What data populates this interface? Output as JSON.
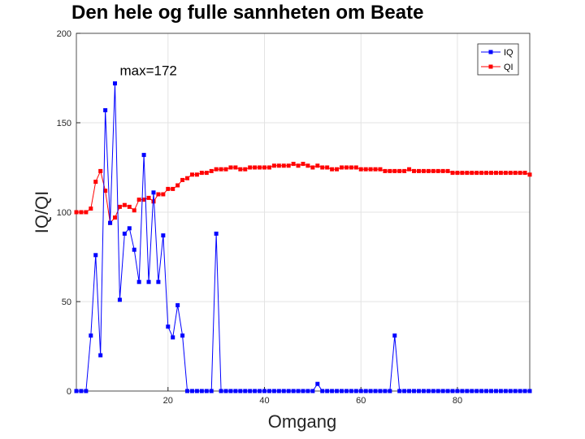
{
  "chart_data": {
    "type": "line",
    "title": "Den hele og fulle sannheten om Beate",
    "xlabel": "Omgang",
    "ylabel": "IQ/QI",
    "xlim": [
      1,
      95
    ],
    "ylim": [
      0,
      200
    ],
    "xticks": [
      20,
      40,
      60,
      80
    ],
    "yticks": [
      0,
      50,
      100,
      150,
      200
    ],
    "grid": true,
    "legend_position": "top-right",
    "annotations": [
      {
        "text": "max=172",
        "x": 9,
        "y": 172
      }
    ],
    "series": [
      {
        "name": "IQ",
        "color": "#0000ff",
        "marker": "square",
        "x": [
          1,
          2,
          3,
          4,
          5,
          6,
          7,
          8,
          9,
          10,
          11,
          12,
          13,
          14,
          15,
          16,
          17,
          18,
          19,
          20,
          21,
          22,
          23,
          24,
          25,
          26,
          27,
          28,
          29,
          30,
          31,
          32,
          33,
          34,
          35,
          36,
          37,
          38,
          39,
          40,
          41,
          42,
          43,
          44,
          45,
          46,
          47,
          48,
          49,
          50,
          51,
          52,
          53,
          54,
          55,
          56,
          57,
          58,
          59,
          60,
          61,
          62,
          63,
          64,
          65,
          66,
          67,
          68,
          69,
          70,
          71,
          72,
          73,
          74,
          75,
          76,
          77,
          78,
          79,
          80,
          81,
          82,
          83,
          84,
          85,
          86,
          87,
          88,
          89,
          90,
          91,
          92,
          93,
          94,
          95
        ],
        "y": [
          0,
          0,
          0,
          31,
          76,
          20,
          157,
          94,
          172,
          51,
          88,
          91,
          79,
          61,
          132,
          61,
          111,
          61,
          87,
          36,
          30,
          48,
          31,
          0,
          0,
          0,
          0,
          0,
          0,
          88,
          0,
          0,
          0,
          0,
          0,
          0,
          0,
          0,
          0,
          0,
          0,
          0,
          0,
          0,
          0,
          0,
          0,
          0,
          0,
          0,
          4,
          0,
          0,
          0,
          0,
          0,
          0,
          0,
          0,
          0,
          0,
          0,
          0,
          0,
          0,
          0,
          31,
          0,
          0,
          0,
          0,
          0,
          0,
          0,
          0,
          0,
          0,
          0,
          0,
          0,
          0,
          0,
          0,
          0,
          0,
          0,
          0,
          0,
          0,
          0,
          0,
          0,
          0,
          0,
          0
        ]
      },
      {
        "name": "QI",
        "color": "#ff0000",
        "marker": "square",
        "x": [
          1,
          2,
          3,
          4,
          5,
          6,
          7,
          8,
          9,
          10,
          11,
          12,
          13,
          14,
          15,
          16,
          17,
          18,
          19,
          20,
          21,
          22,
          23,
          24,
          25,
          26,
          27,
          28,
          29,
          30,
          31,
          32,
          33,
          34,
          35,
          36,
          37,
          38,
          39,
          40,
          41,
          42,
          43,
          44,
          45,
          46,
          47,
          48,
          49,
          50,
          51,
          52,
          53,
          54,
          55,
          56,
          57,
          58,
          59,
          60,
          61,
          62,
          63,
          64,
          65,
          66,
          67,
          68,
          69,
          70,
          71,
          72,
          73,
          74,
          75,
          76,
          77,
          78,
          79,
          80,
          81,
          82,
          83,
          84,
          85,
          86,
          87,
          88,
          89,
          90,
          91,
          92,
          93,
          94,
          95
        ],
        "y": [
          100,
          100,
          100,
          102,
          117,
          123,
          112,
          94,
          97,
          103,
          104,
          103,
          101,
          107,
          107,
          108,
          106,
          110,
          110,
          113,
          113,
          115,
          118,
          119,
          121,
          121,
          122,
          122,
          123,
          124,
          124,
          124,
          125,
          125,
          124,
          124,
          125,
          125,
          125,
          125,
          125,
          126,
          126,
          126,
          126,
          127,
          126,
          127,
          126,
          125,
          126,
          125,
          125,
          124,
          124,
          125,
          125,
          125,
          125,
          124,
          124,
          124,
          124,
          124,
          123,
          123,
          123,
          123,
          123,
          124,
          123,
          123,
          123,
          123,
          123,
          123,
          123,
          123,
          122,
          122,
          122,
          122,
          122,
          122,
          122,
          122,
          122,
          122,
          122,
          122,
          122,
          122,
          122,
          122,
          121
        ]
      }
    ]
  }
}
